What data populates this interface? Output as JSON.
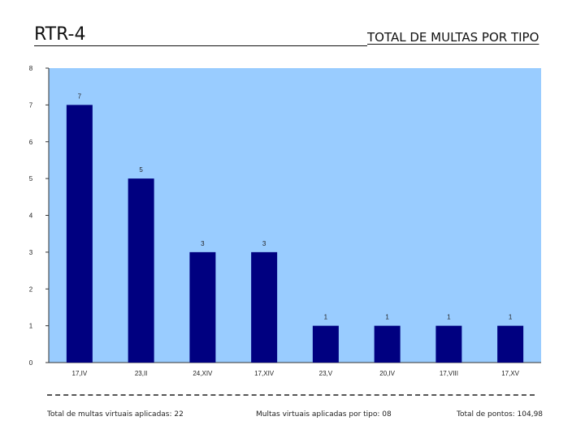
{
  "header": {
    "code": "RTR-4",
    "title": "TOTAL DE MULTAS POR TIPO"
  },
  "chart_data": {
    "type": "bar",
    "title": "TOTAL DE MULTAS POR TIPO",
    "xlabel": "",
    "ylabel": "",
    "categories": [
      "17,IV",
      "23,II",
      "24,XIV",
      "17,XIV",
      "23,V",
      "20,IV",
      "17,VIII",
      "17,XV"
    ],
    "values": [
      7,
      5,
      3,
      3,
      1,
      1,
      1,
      1
    ],
    "ylim": [
      0,
      8
    ],
    "yticks": [
      0,
      1,
      2,
      3,
      4,
      5,
      6,
      7,
      8
    ],
    "grid": false,
    "data_labels": true,
    "colors": {
      "plot_background": "#99CCFF",
      "bar": "#000080",
      "axis": "#333333"
    }
  },
  "footer": {
    "total_fines": "Total de multas virtuais aplicadas: 22",
    "fines_by_type": "Multas virtuais aplicadas por tipo: 08",
    "total_points": "Total de pontos: 104,98"
  }
}
